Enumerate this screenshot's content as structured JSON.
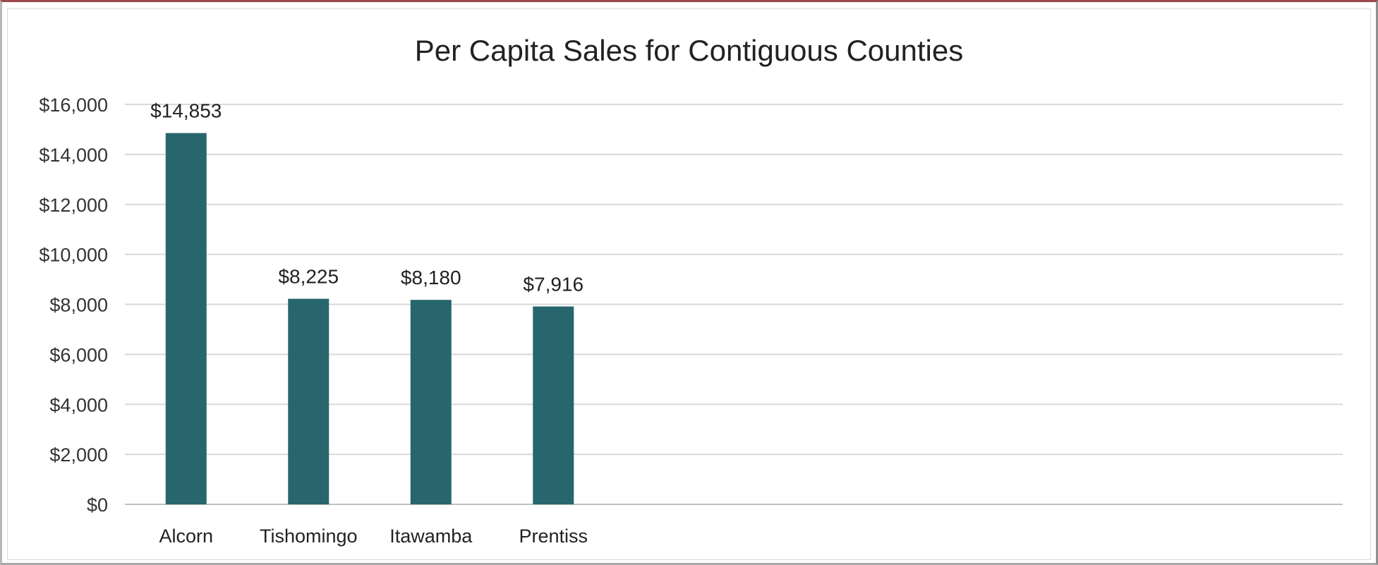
{
  "chart_data": {
    "type": "bar",
    "title": "Per Capita Sales for Contiguous Counties",
    "xlabel": "",
    "ylabel": "",
    "categories": [
      "Alcorn",
      "Tishomingo",
      "Itawamba",
      "Prentiss"
    ],
    "values": [
      14853,
      8225,
      8180,
      7916
    ],
    "data_labels": [
      "$14,853",
      "$8,225",
      "$8,180",
      "$7,916"
    ],
    "ylim": [
      0,
      16000
    ],
    "y_ticks": [
      0,
      2000,
      4000,
      6000,
      8000,
      10000,
      12000,
      14000,
      16000
    ],
    "y_tick_labels": [
      "$0",
      "$2,000",
      "$4,000",
      "$6,000",
      "$8,000",
      "$10,000",
      "$12,000",
      "$14,000",
      "$16,000"
    ],
    "grid": true,
    "legend": "none",
    "bar_color": "#27666d",
    "grid_color": "#d9d9d9"
  }
}
